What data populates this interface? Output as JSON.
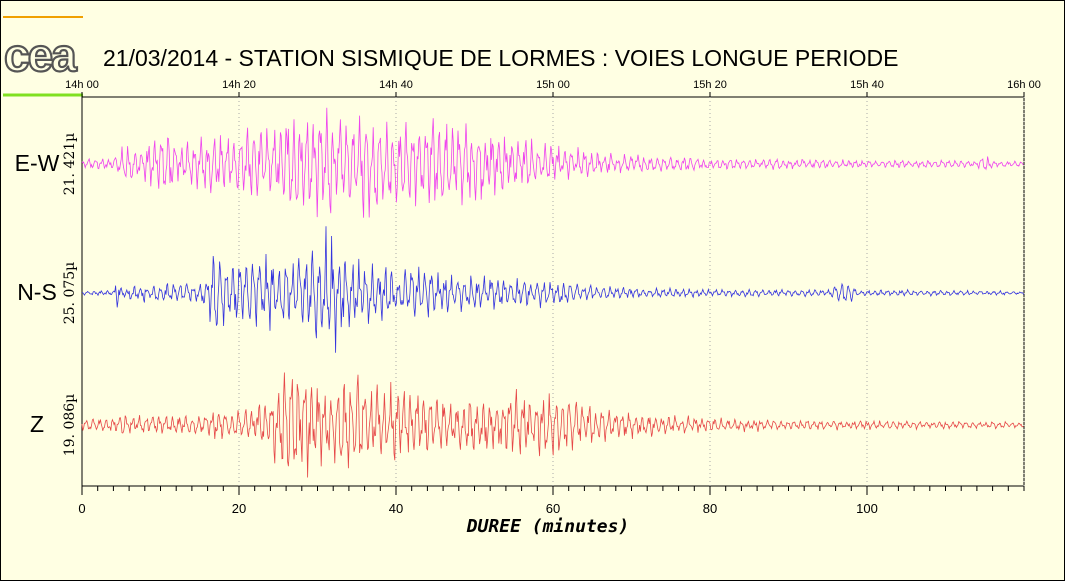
{
  "logo_text": "cea",
  "chart_data": {
    "type": "line",
    "title": "21/03/2014  -  STATION SISMIQUE DE LORMES : VOIES LONGUE PERIODE",
    "xlabel": "DUREE (minutes)",
    "ylabel": "",
    "xlim": [
      0,
      120
    ],
    "x_ticks": [
      0,
      20,
      40,
      60,
      80,
      100
    ],
    "x_minor_step": 2,
    "top_axis_ticks": [
      "14h 00",
      "14h 20",
      "14h 40",
      "15h 00",
      "15h 20",
      "15h 40",
      "16h 00"
    ],
    "grid": "vertical dotted at major ticks",
    "series": [
      {
        "name": "E-W",
        "scale": "21. 421µ",
        "color": "#ee44ee",
        "ylim": [
          -1,
          1
        ],
        "envelope": [
          [
            0,
            0.08
          ],
          [
            4,
            0.1
          ],
          [
            5,
            0.3
          ],
          [
            8,
            0.3
          ],
          [
            10,
            0.45
          ],
          [
            11,
            0.6
          ],
          [
            12,
            0.35
          ],
          [
            14,
            0.4
          ],
          [
            17,
            0.45
          ],
          [
            20,
            0.5
          ],
          [
            24,
            0.6
          ],
          [
            26,
            0.85
          ],
          [
            27,
            1.0
          ],
          [
            29,
            0.8
          ],
          [
            31,
            0.95
          ],
          [
            33,
            0.7
          ],
          [
            35,
            0.75
          ],
          [
            37,
            0.85
          ],
          [
            40,
            0.7
          ],
          [
            43,
            0.6
          ],
          [
            46,
            0.8
          ],
          [
            49,
            0.65
          ],
          [
            52,
            0.6
          ],
          [
            55,
            0.45
          ],
          [
            58,
            0.35
          ],
          [
            62,
            0.25
          ],
          [
            66,
            0.2
          ],
          [
            70,
            0.15
          ],
          [
            80,
            0.1
          ],
          [
            90,
            0.08
          ],
          [
            100,
            0.06
          ],
          [
            114,
            0.06
          ],
          [
            115,
            0.15
          ],
          [
            116,
            0.06
          ],
          [
            120,
            0.04
          ]
        ]
      },
      {
        "name": "N-S",
        "scale": "25. 075µ",
        "color": "#3434dd",
        "ylim": [
          -1,
          1
        ],
        "envelope": [
          [
            0,
            0.03
          ],
          [
            4,
            0.05
          ],
          [
            4.5,
            0.35
          ],
          [
            5,
            0.1
          ],
          [
            8,
            0.15
          ],
          [
            12,
            0.15
          ],
          [
            15,
            0.15
          ],
          [
            16.5,
            0.5
          ],
          [
            17,
            0.9
          ],
          [
            18,
            0.5
          ],
          [
            20,
            0.55
          ],
          [
            23,
            0.6
          ],
          [
            26,
            0.5
          ],
          [
            28,
            0.6
          ],
          [
            30,
            0.7
          ],
          [
            31,
            1.0
          ],
          [
            33,
            0.8
          ],
          [
            35,
            0.5
          ],
          [
            38,
            0.45
          ],
          [
            42,
            0.4
          ],
          [
            45,
            0.35
          ],
          [
            48,
            0.3
          ],
          [
            50,
            0.25
          ],
          [
            55,
            0.25
          ],
          [
            60,
            0.2
          ],
          [
            65,
            0.12
          ],
          [
            70,
            0.08
          ],
          [
            80,
            0.06
          ],
          [
            95,
            0.05
          ],
          [
            97,
            0.2
          ],
          [
            99,
            0.06
          ],
          [
            110,
            0.04
          ],
          [
            120,
            0.03
          ]
        ]
      },
      {
        "name": "Z",
        "scale": "19. 086µ",
        "color": "#e64848",
        "ylim": [
          -1,
          1
        ],
        "envelope": [
          [
            0,
            0.1
          ],
          [
            4,
            0.12
          ],
          [
            5,
            0.25
          ],
          [
            6,
            0.15
          ],
          [
            10,
            0.15
          ],
          [
            15,
            0.15
          ],
          [
            17,
            0.25
          ],
          [
            20,
            0.25
          ],
          [
            22,
            0.35
          ],
          [
            24,
            0.5
          ],
          [
            26,
            0.9
          ],
          [
            27,
            1.0
          ],
          [
            29,
            0.8
          ],
          [
            31,
            0.55
          ],
          [
            34,
            0.85
          ],
          [
            36,
            0.7
          ],
          [
            38,
            0.6
          ],
          [
            41,
            0.65
          ],
          [
            43,
            0.5
          ],
          [
            46,
            0.45
          ],
          [
            50,
            0.5
          ],
          [
            53,
            0.45
          ],
          [
            56,
            0.55
          ],
          [
            59,
            0.45
          ],
          [
            62,
            0.5
          ],
          [
            65,
            0.3
          ],
          [
            70,
            0.2
          ],
          [
            75,
            0.15
          ],
          [
            80,
            0.12
          ],
          [
            90,
            0.08
          ],
          [
            100,
            0.07
          ],
          [
            110,
            0.06
          ],
          [
            120,
            0.05
          ]
        ]
      }
    ]
  }
}
